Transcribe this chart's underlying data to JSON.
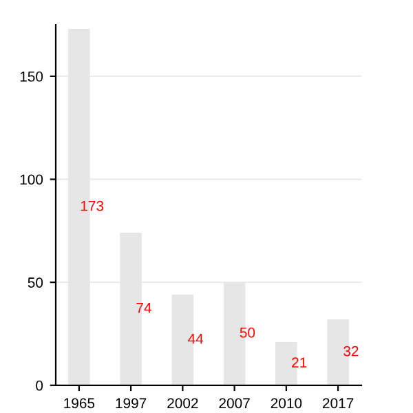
{
  "chart_data": {
    "type": "bar",
    "categories": [
      "1965",
      "1997",
      "2002",
      "2007",
      "2010",
      "2017"
    ],
    "values": [
      173,
      74,
      44,
      50,
      21,
      32
    ],
    "color": "#e6e6e6",
    "data_labels": true,
    "ylim": [
      0,
      175
    ],
    "yticks": [
      0,
      50,
      100,
      150
    ],
    "grid": "y"
  }
}
